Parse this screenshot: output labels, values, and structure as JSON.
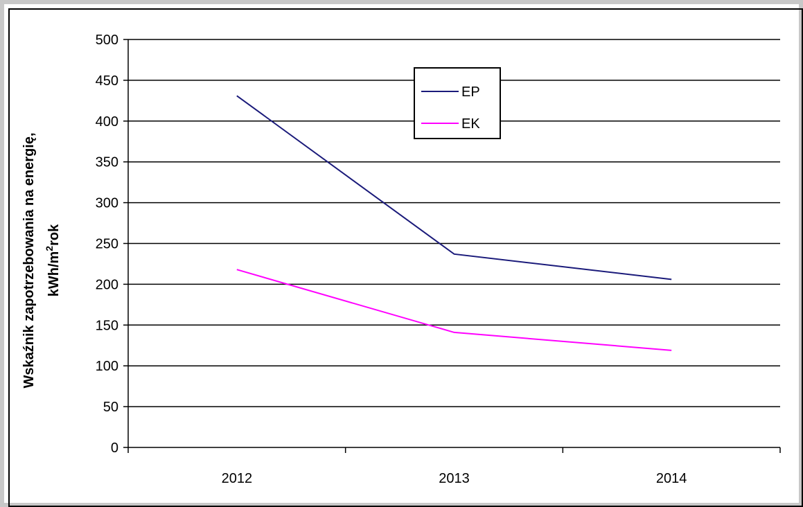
{
  "chart_data": {
    "type": "line",
    "categories": [
      "2012",
      "2013",
      "2014"
    ],
    "series": [
      {
        "name": "EP",
        "values": [
          431,
          237,
          206
        ],
        "color": "#1a1a7a"
      },
      {
        "name": "EK",
        "values": [
          218,
          141,
          119
        ],
        "color": "#ff00ff"
      }
    ],
    "ylabel_line1": "Wskaźnik zapotrzebowania na energię,",
    "ylabel_line2_pre": "kWh/m",
    "ylabel_line2_sup": "2",
    "ylabel_line2_post": "rok",
    "ylim": [
      0,
      500
    ],
    "yticks": [
      "0",
      "50",
      "100",
      "150",
      "200",
      "250",
      "300",
      "350",
      "400",
      "450",
      "500"
    ],
    "grid": true,
    "legend_position": "top-center"
  }
}
